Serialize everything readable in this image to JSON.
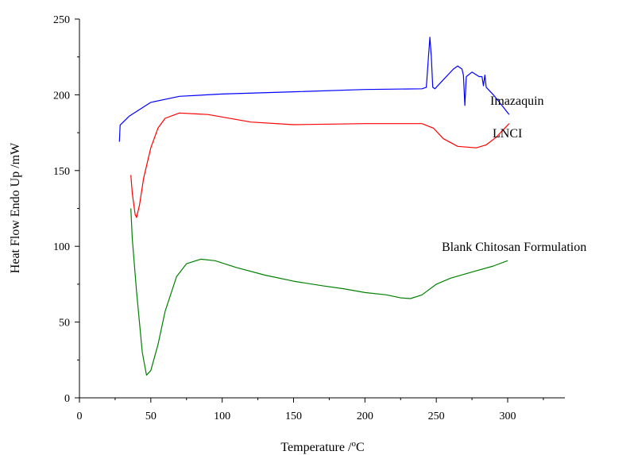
{
  "chart_data": {
    "type": "line",
    "xlabel": "Temperature /",
    "xlabel_unit": "C",
    "xlabel_degree": "o",
    "ylabel": "Heat Flow Endo Up /mW",
    "xlim": [
      0,
      330
    ],
    "ylim": [
      0,
      250
    ],
    "xticks": [
      0,
      50,
      100,
      150,
      200,
      250,
      300
    ],
    "yticks": [
      0,
      50,
      100,
      150,
      200,
      250
    ],
    "grid": false,
    "legend": "inline labels at right end of each curve",
    "series": [
      {
        "name": "Imazaquin",
        "color": "#0000ff",
        "points": [
          [
            28,
            169
          ],
          [
            28.5,
            180
          ],
          [
            35,
            186
          ],
          [
            50,
            195
          ],
          [
            70,
            199
          ],
          [
            100,
            200.5
          ],
          [
            150,
            202
          ],
          [
            200,
            203.5
          ],
          [
            240,
            204
          ],
          [
            243,
            205
          ],
          [
            244.5,
            225
          ],
          [
            245.5,
            238
          ],
          [
            246.5,
            225
          ],
          [
            247.5,
            205
          ],
          [
            249,
            204
          ],
          [
            255,
            210
          ],
          [
            262,
            217
          ],
          [
            265,
            219
          ],
          [
            268,
            217
          ],
          [
            269,
            213
          ],
          [
            270,
            193
          ],
          [
            271,
            212
          ],
          [
            275,
            215
          ],
          [
            280,
            212
          ],
          [
            282,
            212
          ],
          [
            283,
            206
          ],
          [
            284,
            213
          ],
          [
            285,
            205
          ],
          [
            290,
            200
          ],
          [
            296,
            193
          ],
          [
            301,
            187
          ]
        ]
      },
      {
        "name": "LNCI",
        "color": "#ff0000",
        "points": [
          [
            36,
            147
          ],
          [
            37,
            135
          ],
          [
            39,
            121
          ],
          [
            40,
            119
          ],
          [
            42,
            127
          ],
          [
            45,
            145
          ],
          [
            50,
            165
          ],
          [
            55,
            178
          ],
          [
            60,
            184.5
          ],
          [
            70,
            188
          ],
          [
            90,
            187
          ],
          [
            120,
            182
          ],
          [
            150,
            180.3
          ],
          [
            200,
            181
          ],
          [
            240,
            181
          ],
          [
            248,
            178
          ],
          [
            255,
            171
          ],
          [
            265,
            166
          ],
          [
            278,
            165
          ],
          [
            285,
            167
          ],
          [
            292,
            172
          ],
          [
            301,
            181
          ]
        ]
      },
      {
        "name": "Blank Chitosan Formulation",
        "color": "#008000",
        "points": [
          [
            36,
            125
          ],
          [
            37,
            105
          ],
          [
            40,
            70
          ],
          [
            44,
            30
          ],
          [
            47,
            15
          ],
          [
            50,
            18
          ],
          [
            55,
            35
          ],
          [
            60,
            57
          ],
          [
            68,
            80
          ],
          [
            75,
            88.5
          ],
          [
            85,
            91.5
          ],
          [
            95,
            90.5
          ],
          [
            110,
            86
          ],
          [
            130,
            81
          ],
          [
            150,
            77
          ],
          [
            170,
            74
          ],
          [
            185,
            72
          ],
          [
            200,
            69.5
          ],
          [
            215,
            68
          ],
          [
            225,
            66
          ],
          [
            232,
            65.5
          ],
          [
            240,
            68
          ],
          [
            250,
            75
          ],
          [
            260,
            79
          ],
          [
            275,
            83
          ],
          [
            290,
            87
          ],
          [
            300,
            90.5
          ]
        ]
      }
    ]
  }
}
